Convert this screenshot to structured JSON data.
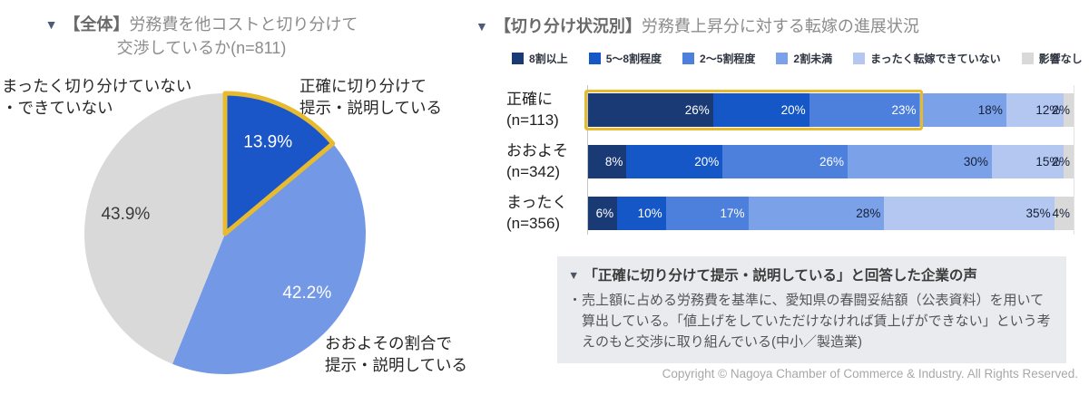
{
  "left_panel": {
    "marker": "▼",
    "title_bold": "【全体】",
    "title_rest": "労務費を他コストと切り分けて",
    "title_line2": "交渉しているか(n=811)",
    "callouts": {
      "none": "まったく切り分けていない\n・できていない",
      "exact": "正確に切り分けて\n提示・説明している",
      "approx": "おおよその割合で\n提示・説明している"
    }
  },
  "right_panel": {
    "marker": "▼",
    "title_bold": "【切り分け状況別】",
    "title_rest": "労務費上昇分に対する転嫁の進展状況",
    "voice_box": {
      "marker": "▼",
      "header": "「正確に切り分けて提示・説明している」と回答した企業の声",
      "body": "・売上額に占める労務費を基準に、愛知県の春闘妥結額（公表資料）を用いて算出している。「値上げをしていただけなければ賃上げができない」という考えのもと交渉に取り組んでいる(中小／製造業)"
    },
    "copyright": "Copyright © Nagoya Chamber of Commerce & Industry. All Rights Reserved."
  },
  "colors": {
    "accent_gold": "#e8ba2f",
    "axis_line": "#c5c5c5",
    "voice_box_bg": "#e9ebef"
  },
  "chart_data": [
    {
      "type": "pie",
      "title": "【全体】労務費を他コストと切り分けて交渉しているか(n=811)",
      "start_angle": 0,
      "direction": "clockwise",
      "outline_color": "#e8ba2f",
      "slices": [
        {
          "label": "正確に切り分けて提示・説明している",
          "value": 13.9,
          "display": "13.9%",
          "color": "#1b56c8",
          "label_color": "#ffffff",
          "outlined": true
        },
        {
          "label": "おおよその割合で提示・説明している",
          "value": 42.2,
          "display": "42.2%",
          "color": "#7399e6",
          "label_color": "#ffffff",
          "outlined": false
        },
        {
          "label": "まったく切り分けていない・できていない",
          "value": 43.9,
          "display": "43.9%",
          "color": "#d9d9d9",
          "label_color": "#3a3a3a",
          "outlined": false
        }
      ]
    },
    {
      "type": "bar",
      "stacked": true,
      "orientation": "horizontal",
      "title": "【切り分け状況別】労務費上昇分に対する転嫁の進展状況",
      "legend": [
        "8割以上",
        "5〜8割程度",
        "2〜5割程度",
        "2割未満",
        "まったく転嫁できていない",
        "影響なし"
      ],
      "colors": [
        "#1a3a76",
        "#1657c7",
        "#4d7fdc",
        "#7ba1e8",
        "#b3c7f0",
        "#d9d9d9"
      ],
      "label_colors": [
        "#ffffff",
        "#ffffff",
        "#ffffff",
        "#161f38",
        "#161f38",
        "#161f38"
      ],
      "value_suffix": "%",
      "xlim": [
        0,
        100
      ],
      "rows": [
        {
          "category_line1": "正確に",
          "category_line2": "(n=113)",
          "values": [
            26,
            20,
            23,
            18,
            12,
            2
          ],
          "highlight_first_n": 3
        },
        {
          "category_line1": "おおよそ",
          "category_line2": "(n=342)",
          "values": [
            8,
            20,
            26,
            30,
            15,
            2
          ],
          "highlight_first_n": 0
        },
        {
          "category_line1": "まったく",
          "category_line2": "(n=356)",
          "values": [
            6,
            10,
            17,
            28,
            35,
            4
          ],
          "highlight_first_n": 0
        }
      ]
    }
  ]
}
